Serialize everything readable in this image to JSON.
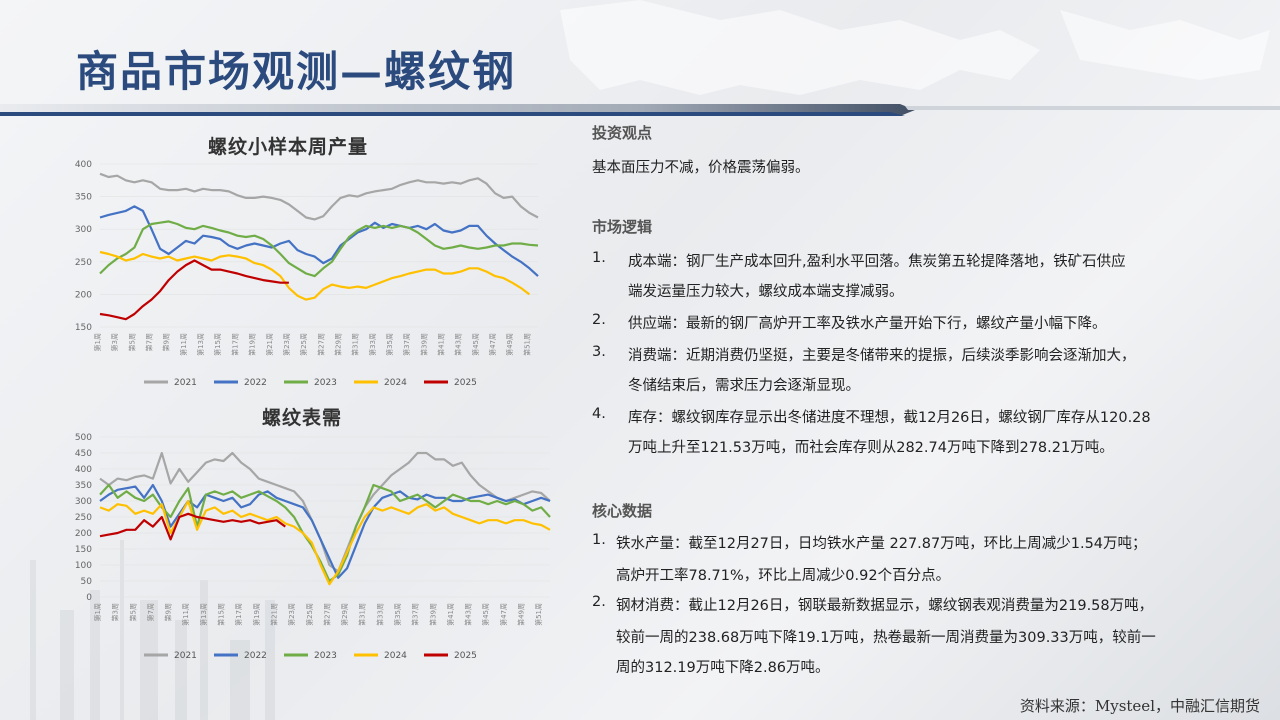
{
  "page_title": "商品市场观测—螺纹钢",
  "source_note": "资料来源：Mysteel，中融汇信期货",
  "right_panel": {
    "view_heading": "投资观点",
    "view_text": "基本面压力不减，价格震荡偏弱。",
    "logic_heading": "市场逻辑",
    "logic_items": [
      {
        "num": "1.",
        "lines": [
          "成本端：钢厂生产成本回升,盈利水平回落。焦炭第五轮提降落地，铁矿石供应",
          "端发运量压力较大，螺纹成本端支撑减弱。"
        ]
      },
      {
        "num": "2.",
        "lines": [
          "供应端：最新的钢厂高炉开工率及铁水产量开始下行，螺纹产量小幅下降。"
        ]
      },
      {
        "num": "3.",
        "lines": [
          "消费端：近期消费仍坚挺，主要是冬储带来的提振，后续淡季影响会逐渐加大，",
          "冬储结束后，需求压力会逐渐显现。"
        ]
      },
      {
        "num": "4.",
        "lines": [
          "库存：螺纹钢库存显示出冬储进度不理想，截12月26日，螺纹钢厂库存从120.28",
          "万吨上升至121.53万吨，而社会库存则从282.74万吨下降到278.21万吨。"
        ]
      }
    ],
    "core_heading": "核心数据",
    "core_items": [
      {
        "num": "1.",
        "lines": [
          "铁水产量：截至12月27日，日均铁水产量 227.87万吨，环比上周减少1.54万吨；",
          "高炉开工率78.71%，环比上周减少0.92个百分点。"
        ]
      },
      {
        "num": "2.",
        "lines": [
          "钢材消费：截止12月26日，钢联最新数据显示，螺纹钢表观消费量为219.58万吨，",
          "较前一周的238.68万吨下降19.1万吨，热卷最新一周消费量为309.33万吨，较前一",
          "周的312.19万吨下降2.86万吨。"
        ]
      }
    ]
  },
  "colors": {
    "2021": "#a6a6a6",
    "2022": "#4472c4",
    "2023": "#70ad47",
    "2024": "#ffc000",
    "2025": "#c00000",
    "title": "#2b4a7e"
  },
  "chart_data": [
    {
      "type": "line",
      "title": "螺纹小样本周产量",
      "ylim": [
        150,
        400
      ],
      "yticks": [
        "150",
        "200",
        "250",
        "300",
        "350",
        "400"
      ],
      "xticks": [
        "第1周",
        "第3周",
        "第5周",
        "第7周",
        "第9周",
        "第11周",
        "第13周",
        "第15周",
        "第17周",
        "第19周",
        "第21周",
        "第23周",
        "第25周",
        "第27周",
        "第29周",
        "第31周",
        "第33周",
        "第35周",
        "第37周",
        "第39周",
        "第41周",
        "第43周",
        "第45周",
        "第47周",
        "第49周",
        "第51周"
      ],
      "legend": [
        "2021",
        "2022",
        "2023",
        "2024",
        "2025"
      ],
      "series": [
        {
          "name": "2021",
          "values": [
            385,
            380,
            382,
            375,
            372,
            375,
            372,
            362,
            360,
            360,
            362,
            358,
            362,
            360,
            360,
            358,
            352,
            348,
            348,
            350,
            348,
            345,
            338,
            328,
            318,
            315,
            320,
            335,
            348,
            352,
            350,
            355,
            358,
            360,
            362,
            368,
            372,
            375,
            372,
            372,
            370,
            372,
            370,
            375,
            378,
            370,
            355,
            348,
            350,
            335,
            325,
            318
          ]
        },
        {
          "name": "2022",
          "values": [
            318,
            322,
            325,
            328,
            335,
            328,
            300,
            270,
            262,
            272,
            282,
            278,
            290,
            288,
            285,
            275,
            270,
            275,
            278,
            275,
            272,
            278,
            282,
            268,
            262,
            258,
            248,
            255,
            275,
            285,
            295,
            300,
            310,
            302,
            308,
            305,
            302,
            305,
            300,
            308,
            298,
            295,
            298,
            305,
            305,
            290,
            278,
            268,
            258,
            250,
            240,
            228
          ]
        },
        {
          "name": "2023",
          "values": [
            232,
            245,
            255,
            262,
            272,
            300,
            308,
            310,
            312,
            308,
            302,
            300,
            305,
            302,
            298,
            295,
            290,
            288,
            290,
            285,
            275,
            262,
            248,
            240,
            232,
            228,
            240,
            250,
            270,
            288,
            298,
            305,
            302,
            305,
            302,
            305,
            302,
            295,
            285,
            275,
            270,
            272,
            275,
            272,
            270,
            272,
            275,
            275,
            278,
            278,
            276,
            275
          ]
        },
        {
          "name": "2024",
          "values": [
            265,
            262,
            258,
            252,
            255,
            262,
            258,
            255,
            258,
            252,
            255,
            258,
            255,
            252,
            258,
            260,
            258,
            255,
            248,
            245,
            238,
            228,
            210,
            198,
            192,
            195,
            208,
            215,
            212,
            210,
            212,
            210,
            215,
            220,
            225,
            228,
            232,
            235,
            238,
            238,
            232,
            232,
            235,
            240,
            240,
            235,
            228,
            225,
            218,
            210,
            200
          ]
        },
        {
          "name": "2025",
          "values": [
            170,
            168,
            165,
            162,
            170,
            182,
            192,
            205,
            222,
            235,
            245,
            252,
            245,
            238,
            238,
            235,
            232,
            228,
            225,
            222,
            220,
            218,
            218
          ]
        }
      ]
    },
    {
      "type": "line",
      "title": "螺纹表需",
      "ylim": [
        0,
        500
      ],
      "yticks": [
        "0",
        "50",
        "100",
        "150",
        "200",
        "250",
        "300",
        "350",
        "400",
        "450",
        "500"
      ],
      "xticks": [
        "第1周",
        "第3周",
        "第5周",
        "第7周",
        "第9周",
        "第11周",
        "第13周",
        "第15周",
        "第17周",
        "第19周",
        "第21周",
        "第23周",
        "第25周",
        "第27周",
        "第29周",
        "第31周",
        "第33周",
        "第35周",
        "第37周",
        "第39周",
        "第41周",
        "第43周",
        "第45周",
        "第47周",
        "第49周",
        "第51周"
      ],
      "legend": [
        "2021",
        "2022",
        "2023",
        "2024",
        "2025"
      ],
      "series": [
        {
          "name": "2021",
          "values": [
            370,
            350,
            370,
            365,
            375,
            380,
            370,
            450,
            355,
            400,
            360,
            390,
            420,
            430,
            425,
            450,
            420,
            400,
            370,
            360,
            350,
            340,
            330,
            300,
            240,
            180,
            100,
            80,
            150,
            220,
            280,
            320,
            350,
            380,
            400,
            420,
            450,
            450,
            430,
            430,
            410,
            420,
            380,
            350,
            330,
            310,
            300,
            310,
            320,
            330,
            325,
            300
          ]
        },
        {
          "name": "2022",
          "values": [
            300,
            320,
            335,
            340,
            345,
            310,
            350,
            300,
            220,
            260,
            300,
            280,
            320,
            310,
            300,
            310,
            280,
            290,
            320,
            330,
            310,
            300,
            290,
            280,
            240,
            180,
            120,
            60,
            90,
            160,
            230,
            280,
            310,
            320,
            330,
            310,
            305,
            320,
            310,
            310,
            300,
            300,
            310,
            315,
            320,
            310,
            300,
            305,
            290,
            300,
            310,
            300
          ]
        },
        {
          "name": "2023",
          "values": [
            320,
            350,
            310,
            330,
            310,
            300,
            320,
            280,
            250,
            300,
            340,
            220,
            320,
            330,
            320,
            330,
            310,
            320,
            330,
            315,
            300,
            280,
            250,
            200,
            160,
            110,
            50,
            70,
            130,
            220,
            280,
            350,
            340,
            330,
            300,
            310,
            320,
            300,
            280,
            300,
            320,
            310,
            300,
            300,
            290,
            300,
            290,
            300,
            290,
            270,
            280,
            250
          ]
        },
        {
          "name": "2024",
          "values": [
            280,
            270,
            290,
            285,
            260,
            270,
            260,
            290,
            200,
            250,
            300,
            210,
            270,
            280,
            260,
            270,
            250,
            260,
            250,
            240,
            250,
            230,
            220,
            200,
            170,
            100,
            40,
            80,
            140,
            200,
            250,
            280,
            270,
            280,
            270,
            260,
            280,
            290,
            270,
            280,
            260,
            250,
            240,
            230,
            240,
            240,
            230,
            240,
            240,
            230,
            225,
            210
          ]
        },
        {
          "name": "2025",
          "values": [
            190,
            195,
            200,
            210,
            210,
            240,
            220,
            250,
            180,
            250,
            260,
            250,
            245,
            240,
            235,
            240,
            235,
            240,
            230,
            235,
            240,
            220
          ]
        }
      ]
    }
  ]
}
